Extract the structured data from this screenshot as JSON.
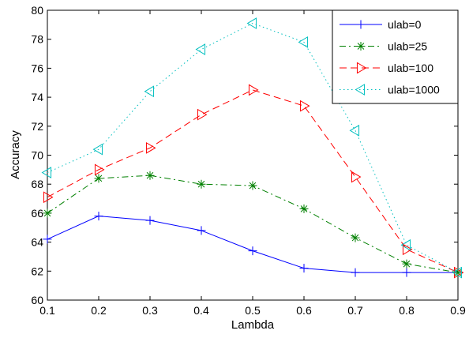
{
  "chart_data": {
    "type": "line",
    "xlabel": "Lambda",
    "ylabel": "Accuracy",
    "xlim": [
      0.1,
      0.9
    ],
    "ylim": [
      60,
      80
    ],
    "xticks": [
      "0.1",
      "0.2",
      "0.3",
      "0.4",
      "0.5",
      "0.6",
      "0.7",
      "0.8",
      "0.9"
    ],
    "yticks": [
      "60",
      "62",
      "64",
      "66",
      "68",
      "70",
      "72",
      "74",
      "76",
      "78",
      "80"
    ],
    "grid": false,
    "legend_position": "top-right",
    "x": [
      0.1,
      0.2,
      0.3,
      0.4,
      0.5,
      0.6,
      0.7,
      0.8,
      0.9
    ],
    "series": [
      {
        "name": "ulab=0",
        "color": "#0000ff",
        "marker": "plus",
        "line": "solid",
        "values": [
          64.2,
          65.8,
          65.5,
          64.8,
          63.4,
          62.2,
          61.9,
          61.9,
          61.9
        ]
      },
      {
        "name": "ulab=25",
        "color": "#008000",
        "marker": "asterisk",
        "line": "dash-dot",
        "values": [
          66.0,
          68.4,
          68.6,
          68.0,
          67.9,
          66.3,
          64.3,
          62.5,
          61.9
        ]
      },
      {
        "name": "ulab=100",
        "color": "#ff0000",
        "marker": "triangle-right",
        "line": "dashed",
        "values": [
          67.1,
          69.0,
          70.5,
          72.8,
          74.5,
          73.4,
          68.5,
          63.5,
          61.9
        ]
      },
      {
        "name": "ulab=1000",
        "color": "#00bfbf",
        "marker": "triangle-left",
        "line": "dotted",
        "values": [
          68.8,
          70.4,
          74.4,
          77.3,
          79.1,
          77.8,
          71.7,
          63.8,
          61.9
        ]
      }
    ]
  }
}
